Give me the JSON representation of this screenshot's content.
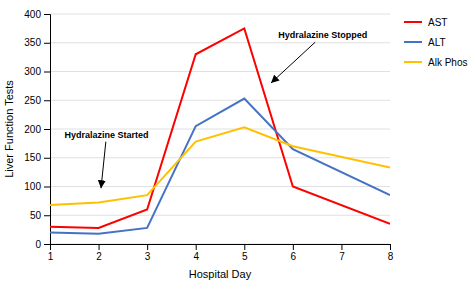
{
  "chart_data": {
    "type": "line",
    "x": [
      1,
      2,
      3,
      4,
      5,
      6,
      8
    ],
    "series": [
      {
        "name": "AST",
        "color": "#FF0000",
        "values": [
          30,
          28,
          60,
          330,
          375,
          100,
          35
        ]
      },
      {
        "name": "ALT",
        "color": "#4472C4",
        "values": [
          20,
          18,
          28,
          205,
          253,
          165,
          85
        ]
      },
      {
        "name": "Alk Phos",
        "color": "#FFC000",
        "values": [
          68,
          72,
          85,
          178,
          203,
          170,
          133
        ]
      }
    ],
    "xlabel": "Hospital Day",
    "ylabel": "Liver Function Tests",
    "xlim": [
      1,
      8
    ],
    "xticks": [
      1,
      2,
      3,
      4,
      5,
      6,
      7,
      8
    ],
    "ylim": [
      0,
      400
    ],
    "yticks": [
      0,
      50,
      100,
      150,
      200,
      250,
      300,
      350,
      400
    ],
    "grid": true,
    "legend": "right",
    "annotations": [
      {
        "text": "Hydralazine Started",
        "xy": [
          2.05,
          97
        ],
        "xytext": [
          1.3,
          185
        ]
      },
      {
        "text": "Hydralazine Stopped",
        "xy": [
          5.55,
          280
        ],
        "xytext": [
          5.7,
          358
        ]
      }
    ]
  }
}
